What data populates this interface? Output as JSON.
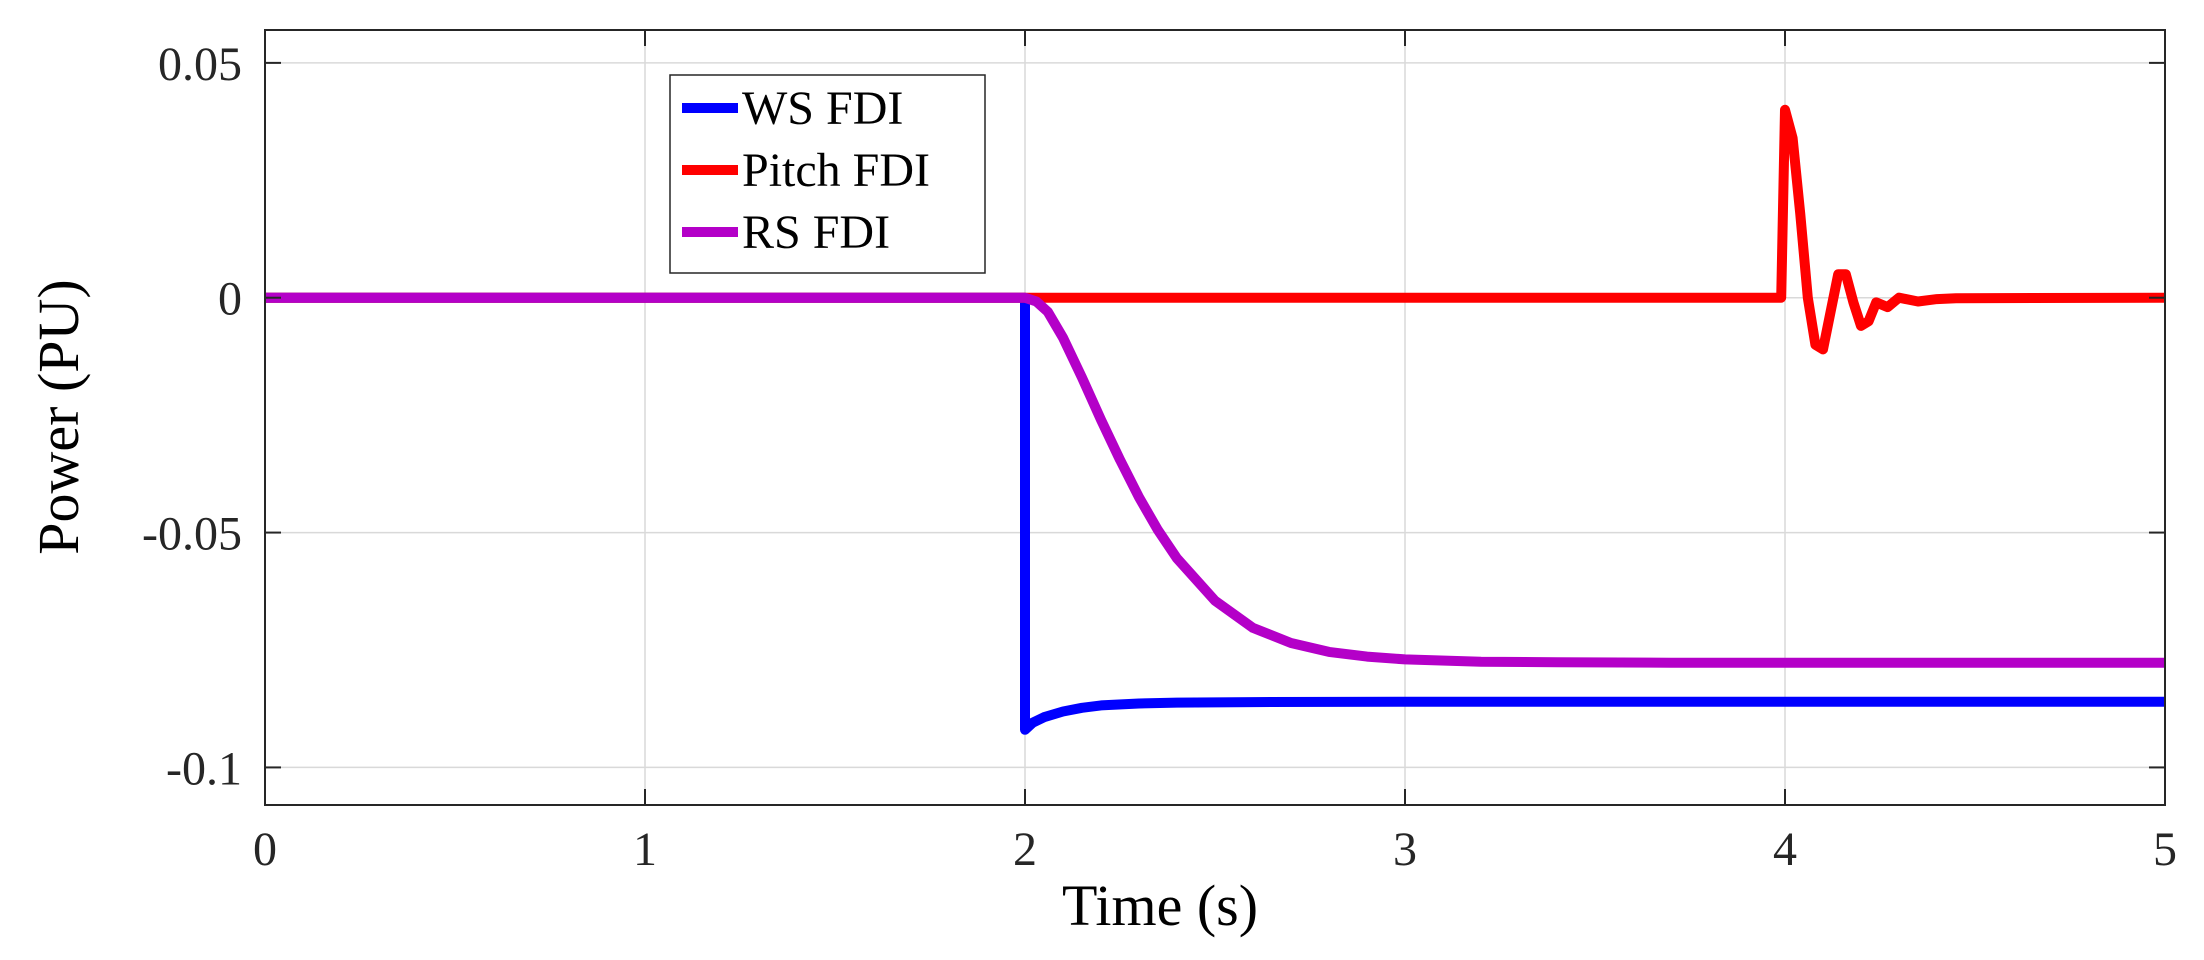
{
  "chart_data": {
    "type": "line",
    "title": "",
    "xlabel": "Time (s)",
    "ylabel": "Power (PU)",
    "xlim": [
      0,
      5
    ],
    "ylim": [
      -0.108,
      0.057
    ],
    "xticks": [
      0,
      1,
      2,
      3,
      4,
      5
    ],
    "xtick_labels": [
      "0",
      "1",
      "2",
      "3",
      "4",
      "5"
    ],
    "yticks": [
      0.05,
      0,
      -0.05,
      -0.1
    ],
    "ytick_labels": [
      "0.05",
      "0",
      "-0.05",
      "-0.1"
    ],
    "grid": true,
    "legend_position": "top-left",
    "series": [
      {
        "name": "WS FDI",
        "color": "#0000ff",
        "x": [
          0,
          1.99,
          2.0,
          2.0,
          2.02,
          2.05,
          2.1,
          2.15,
          2.2,
          2.3,
          2.4,
          2.6,
          3.0,
          4.0,
          5.0
        ],
        "y": [
          0,
          0,
          0,
          -0.092,
          -0.0905,
          -0.0893,
          -0.0881,
          -0.0873,
          -0.0868,
          -0.0864,
          -0.0862,
          -0.0861,
          -0.086,
          -0.086,
          -0.086
        ]
      },
      {
        "name": "Pitch FDI",
        "color": "#ff0000",
        "x": [
          0,
          3.99,
          4.0,
          4.02,
          4.04,
          4.06,
          4.08,
          4.1,
          4.12,
          4.14,
          4.16,
          4.18,
          4.2,
          4.22,
          4.24,
          4.27,
          4.3,
          4.35,
          4.4,
          4.45,
          5.0
        ],
        "y": [
          0,
          0,
          0.04,
          0.034,
          0.018,
          0.0,
          -0.01,
          -0.011,
          -0.003,
          0.005,
          0.005,
          -0.001,
          -0.006,
          -0.005,
          -0.001,
          -0.002,
          0.0,
          -0.0008,
          -0.0003,
          -0.0001,
          0
        ]
      },
      {
        "name": "RS FDI",
        "color": "#b400c8",
        "x": [
          0,
          2.0,
          2.03,
          2.06,
          2.1,
          2.15,
          2.2,
          2.25,
          2.3,
          2.35,
          2.4,
          2.5,
          2.6,
          2.7,
          2.8,
          2.9,
          3.0,
          3.2,
          3.4,
          3.7,
          4.0,
          5.0
        ],
        "y": [
          0,
          0,
          -0.0008,
          -0.003,
          -0.0085,
          -0.017,
          -0.026,
          -0.0345,
          -0.0425,
          -0.0495,
          -0.0555,
          -0.0645,
          -0.0703,
          -0.0735,
          -0.0754,
          -0.0764,
          -0.077,
          -0.0775,
          -0.0776,
          -0.0777,
          -0.0777,
          -0.0777
        ]
      }
    ]
  }
}
